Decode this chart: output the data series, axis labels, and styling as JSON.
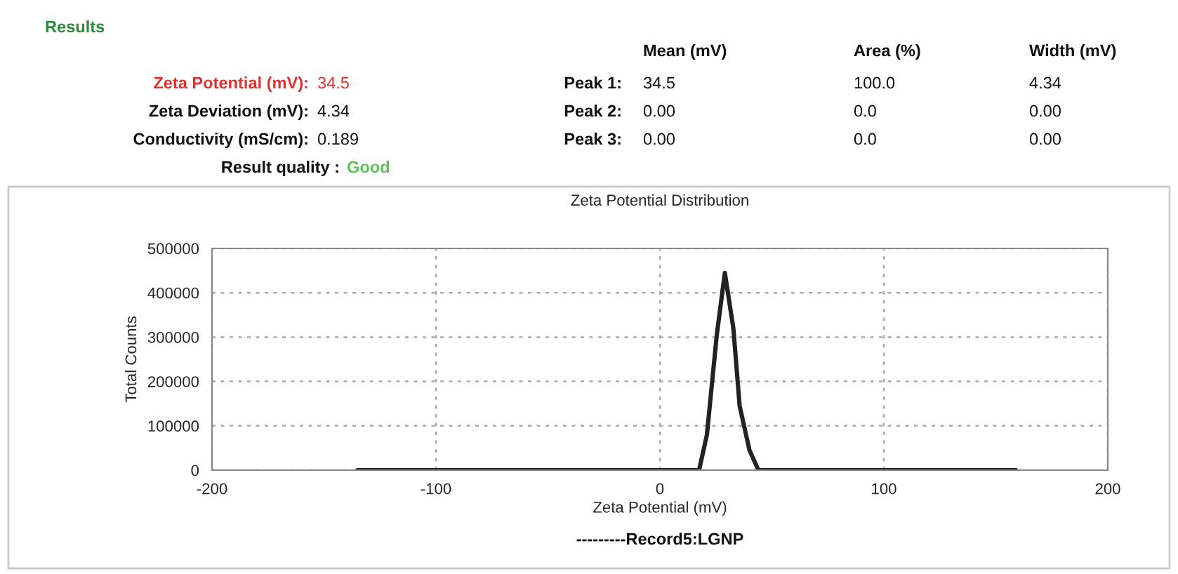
{
  "chart_data": {
    "type": "line",
    "title": "Zeta Potential Distribution",
    "xlabel": "Zeta Potential (mV)",
    "ylabel": "Total Counts",
    "x": [
      -135,
      17.5,
      21,
      25.4,
      29,
      32.8,
      35.6,
      40,
      44,
      159
    ],
    "series": [
      {
        "color": "#222222",
        "values": [
          0,
          0,
          80000,
          305000,
          445000,
          320000,
          145000,
          45000,
          0,
          0
        ]
      }
    ],
    "xlim": [
      -200,
      200
    ],
    "xticks": [
      -200,
      -100,
      0,
      100,
      200
    ],
    "ylim": [
      0,
      500000
    ],
    "yticks": [
      0,
      100000,
      200000,
      300000,
      400000,
      500000
    ],
    "grid": true,
    "marker": "none",
    "line_style": "solid",
    "annotations": [
      "Results",
      "Mean (mV)",
      "Area (%)",
      "Width (mV)",
      "Zeta Potential (mV):",
      "34.5",
      "Peak 1:",
      "34.5",
      "100.0",
      "4.34",
      "Zeta Deviation (mV):",
      "4.34",
      "Peak 2:",
      "0.00",
      "0.0",
      "0.00",
      "Conductivity (mS/cm):",
      "0.189",
      "Peak 3:",
      "0.00",
      "0.0",
      "0.00",
      "Result quality :",
      "Good",
      "---------Record5:LGNP"
    ]
  }
}
